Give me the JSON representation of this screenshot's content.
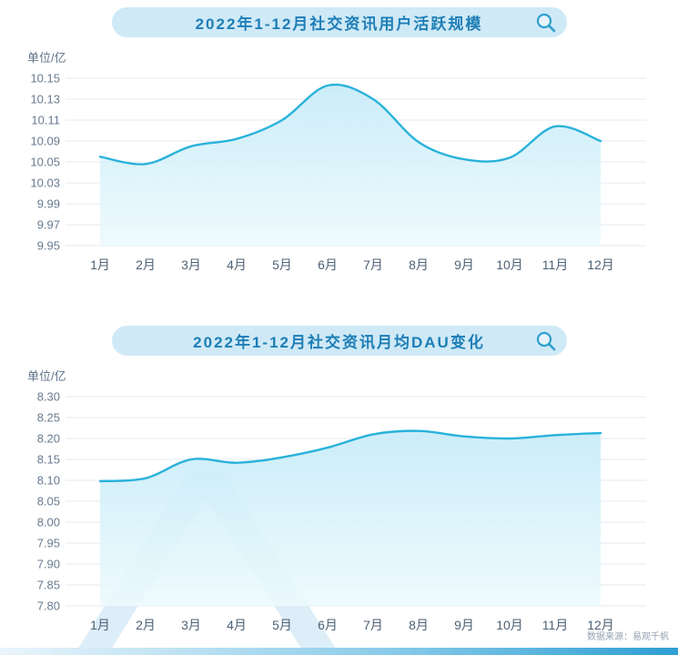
{
  "page": {
    "source_note": "数据来源：易观千帆"
  },
  "chart_data": [
    {
      "type": "area",
      "title": "2022年1-12月社交资讯用户活跃规模",
      "unit_label": "单位/亿",
      "categories": [
        "1月",
        "2月",
        "3月",
        "4月",
        "5月",
        "6月",
        "7月",
        "8月",
        "9月",
        "10月",
        "11月",
        "12月"
      ],
      "values": [
        10.06,
        10.048,
        10.08,
        10.092,
        10.11,
        10.143,
        10.13,
        10.088,
        10.055,
        10.058,
        10.104,
        10.09
      ],
      "y_ticks": [
        "10.15",
        "10.13",
        "10.11",
        "10.09",
        "10.05",
        "10.03",
        "9.99",
        "9.97",
        "9.95"
      ],
      "ylim": [
        9.95,
        10.15
      ],
      "grid": true,
      "legend": false,
      "line_color": "#29b2da",
      "area_top_color": "#c6ebf8",
      "area_bottom_color": "#edfafd"
    },
    {
      "type": "area",
      "title": "2022年1-12月社交资讯月均DAU变化",
      "unit_label": "单位/亿",
      "categories": [
        "1月",
        "2月",
        "3月",
        "4月",
        "5月",
        "6月",
        "7月",
        "8月",
        "9月",
        "10月",
        "11月",
        "12月"
      ],
      "values": [
        8.098,
        8.105,
        8.15,
        8.142,
        8.155,
        8.178,
        8.21,
        8.218,
        8.205,
        8.2,
        8.208,
        8.213
      ],
      "y_ticks": [
        "8.30",
        "8.25",
        "8.20",
        "8.15",
        "8.10",
        "8.05",
        "8.00",
        "7.95",
        "7.90",
        "7.85",
        "7.80"
      ],
      "ylim": [
        7.8,
        8.3
      ],
      "grid": true,
      "legend": false,
      "line_color": "#29b2da",
      "area_top_color": "#c6ebf8",
      "area_bottom_color": "#edfafd"
    }
  ]
}
